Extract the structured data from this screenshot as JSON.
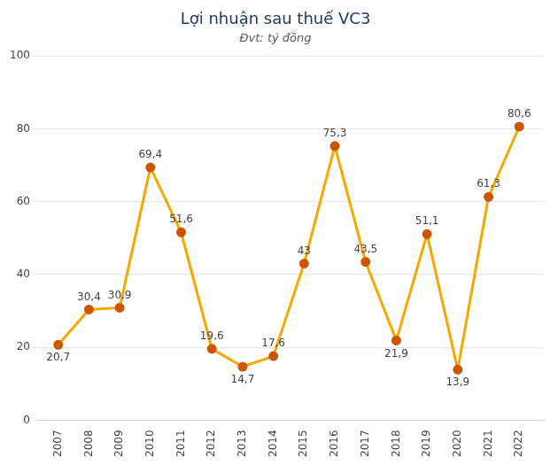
{
  "chart_data": {
    "type": "line",
    "title": "Lợi nhuận sau thuế VC3",
    "subtitle": "Đvt: tỷ đồng",
    "x": [
      2007,
      2008,
      2009,
      2010,
      2011,
      2012,
      2013,
      2014,
      2015,
      2016,
      2017,
      2018,
      2019,
      2020,
      2021,
      2022
    ],
    "values": [
      20.7,
      30.4,
      30.9,
      69.4,
      51.6,
      19.6,
      14.7,
      17.6,
      43.0,
      75.3,
      43.5,
      21.9,
      51.1,
      13.9,
      61.3,
      80.6
    ],
    "value_labels": [
      "20,7",
      "30,4",
      "30,9",
      "69,4",
      "51,6",
      "19,6",
      "14,7",
      "17,6",
      "43",
      "75,3",
      "43,5",
      "21,9",
      "51,1",
      "13,9",
      "61,3",
      "80,6"
    ],
    "color": "#F5A800",
    "colors": [
      "#CC5500",
      "#CC5500",
      "#CC5500",
      "#CC5500",
      "#CC5500",
      "#CC5500",
      "#CC5500",
      "#CC5500",
      "#CC5500",
      "#CC5500",
      "#CC5500",
      "#CC5500",
      "#CC5500",
      "#CC5500",
      "#CC5500",
      "#CC5500"
    ],
    "marker": "circle",
    "data_labels": true,
    "xlim": [
      2006.4,
      2022.8
    ],
    "xticks": [
      2007,
      2008,
      2009,
      2010,
      2011,
      2012,
      2013,
      2014,
      2015,
      2016,
      2017,
      2018,
      2019,
      2020,
      2021,
      2022
    ],
    "ylim": [
      0,
      100
    ],
    "yticks": [
      0,
      20,
      40,
      60,
      80,
      100
    ],
    "grid": true
  }
}
